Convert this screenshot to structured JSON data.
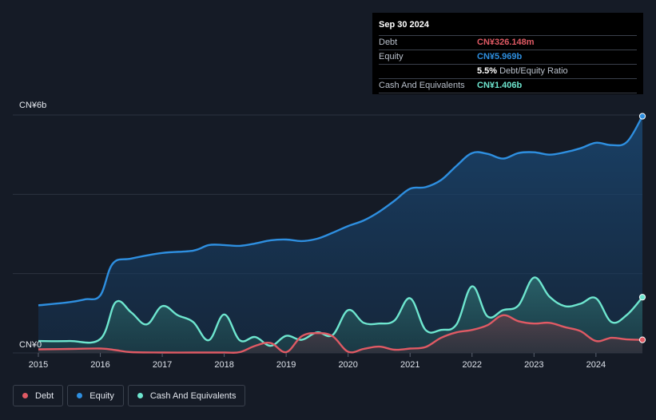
{
  "chart_data": {
    "type": "area",
    "y_axis_labels": {
      "top": "CN¥6b",
      "bottom": "CN¥0"
    },
    "ylim": [
      0,
      6
    ],
    "y_unit": "CN¥ billions",
    "xlim": [
      2015.0,
      2024.75
    ],
    "x_ticks": [
      "2015",
      "2016",
      "2017",
      "2018",
      "2019",
      "2020",
      "2021",
      "2022",
      "2023",
      "2024"
    ],
    "grid": true,
    "series": [
      {
        "name": "Debt",
        "color": "#e05a64",
        "x": [
          2015.0,
          2015.5,
          2016.0,
          2016.25,
          2016.5,
          2017.0,
          2017.5,
          2018.0,
          2018.25,
          2018.5,
          2018.75,
          2019.0,
          2019.25,
          2019.5,
          2019.75,
          2020.0,
          2020.25,
          2020.5,
          2020.75,
          2021.0,
          2021.25,
          2021.5,
          2021.75,
          2022.0,
          2022.25,
          2022.5,
          2022.75,
          2023.0,
          2023.25,
          2023.5,
          2023.75,
          2024.0,
          2024.25,
          2024.5,
          2024.75
        ],
        "values": [
          0.09,
          0.1,
          0.11,
          0.07,
          0.02,
          0.01,
          0.01,
          0.01,
          0.02,
          0.18,
          0.25,
          0.02,
          0.42,
          0.5,
          0.42,
          0.03,
          0.1,
          0.16,
          0.08,
          0.11,
          0.15,
          0.38,
          0.52,
          0.58,
          0.7,
          0.95,
          0.8,
          0.74,
          0.76,
          0.65,
          0.55,
          0.3,
          0.38,
          0.34,
          0.33
        ]
      },
      {
        "name": "Equity",
        "color": "#2e8fe0",
        "x": [
          2015.0,
          2015.5,
          2015.75,
          2016.0,
          2016.2,
          2016.5,
          2017.0,
          2017.5,
          2017.75,
          2018.0,
          2018.25,
          2018.5,
          2018.75,
          2019.0,
          2019.25,
          2019.5,
          2019.75,
          2020.0,
          2020.25,
          2020.5,
          2020.75,
          2021.0,
          2021.25,
          2021.5,
          2021.75,
          2022.0,
          2022.25,
          2022.5,
          2022.75,
          2023.0,
          2023.25,
          2023.5,
          2023.75,
          2024.0,
          2024.25,
          2024.5,
          2024.75
        ],
        "values": [
          1.2,
          1.28,
          1.35,
          1.45,
          2.25,
          2.38,
          2.52,
          2.58,
          2.72,
          2.72,
          2.7,
          2.76,
          2.84,
          2.86,
          2.82,
          2.88,
          3.03,
          3.2,
          3.34,
          3.56,
          3.84,
          4.14,
          4.18,
          4.36,
          4.72,
          5.04,
          5.02,
          4.9,
          5.04,
          5.06,
          5.0,
          5.06,
          5.16,
          5.3,
          5.24,
          5.32,
          5.969
        ]
      },
      {
        "name": "Cash And Equivalents",
        "color": "#6ee6cf",
        "x": [
          2015.0,
          2015.5,
          2016.0,
          2016.25,
          2016.5,
          2016.75,
          2017.0,
          2017.25,
          2017.5,
          2017.75,
          2018.0,
          2018.25,
          2018.5,
          2018.75,
          2019.0,
          2019.25,
          2019.5,
          2019.75,
          2020.0,
          2020.25,
          2020.5,
          2020.75,
          2021.0,
          2021.25,
          2021.5,
          2021.75,
          2022.0,
          2022.25,
          2022.5,
          2022.75,
          2023.0,
          2023.25,
          2023.5,
          2023.75,
          2024.0,
          2024.25,
          2024.5,
          2024.75
        ],
        "values": [
          0.3,
          0.3,
          0.35,
          1.28,
          1.02,
          0.72,
          1.18,
          0.95,
          0.78,
          0.32,
          0.97,
          0.32,
          0.4,
          0.18,
          0.43,
          0.33,
          0.52,
          0.45,
          1.08,
          0.76,
          0.74,
          0.82,
          1.38,
          0.58,
          0.58,
          0.72,
          1.68,
          0.92,
          1.08,
          1.2,
          1.9,
          1.42,
          1.18,
          1.24,
          1.38,
          0.78,
          0.96,
          1.406
        ]
      }
    ]
  },
  "tooltip": {
    "date": "Sep 30 2024",
    "debt_label": "Debt",
    "debt_value": "CN¥326.148m",
    "equity_label": "Equity",
    "equity_value": "CN¥5.969b",
    "ratio_value": "5.5%",
    "ratio_label": "Debt/Equity Ratio",
    "cash_label": "Cash And Equivalents",
    "cash_value": "CN¥1.406b",
    "debt_color": "#e05a64",
    "equity_color": "#2e8fe0",
    "cash_color": "#6ee6cf"
  },
  "legend": {
    "debt": "Debt",
    "equity": "Equity",
    "cash": "Cash And Equivalents"
  }
}
